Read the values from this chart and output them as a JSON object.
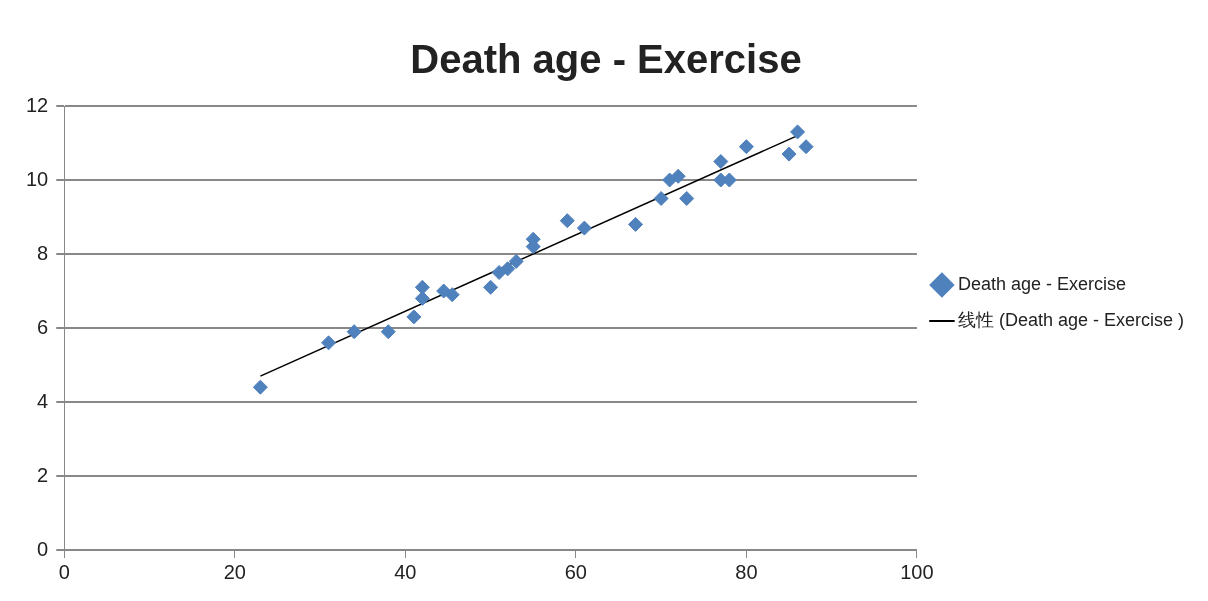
{
  "chart_data": {
    "type": "scatter",
    "title": "Death age - Exercise",
    "series": [
      {
        "name": "Death age - Exercise",
        "type": "scatter",
        "color": "#4f81bd",
        "marker": "diamond",
        "x": [
          23,
          31,
          34,
          38,
          41,
          42,
          42,
          44.5,
          45.5,
          50,
          51,
          52,
          53,
          55,
          55,
          59,
          61,
          67,
          70,
          71,
          72,
          73,
          77,
          77,
          78,
          80,
          85,
          86,
          87
        ],
        "values": [
          4.4,
          5.6,
          5.9,
          5.9,
          6.3,
          6.8,
          7.1,
          7.0,
          6.9,
          7.1,
          7.5,
          7.6,
          7.8,
          8.2,
          8.4,
          8.9,
          8.7,
          8.8,
          9.5,
          10.0,
          10.1,
          9.5,
          10.5,
          10.0,
          10.0,
          10.9,
          10.7,
          11.3,
          10.9
        ]
      },
      {
        "name": "线性 (Death age - Exercise )",
        "type": "line",
        "color": "#000000",
        "marker": "none",
        "line_style": "solid",
        "x": [
          23,
          86
        ],
        "values": [
          4.7,
          11.2
        ]
      }
    ],
    "xlim": [
      0,
      100
    ],
    "xticks": [
      0,
      20,
      40,
      60,
      80,
      100
    ],
    "ylim": [
      0,
      12
    ],
    "yticks": [
      0,
      2,
      4,
      6,
      8,
      10,
      12
    ],
    "grid": "y",
    "legend": "right"
  }
}
